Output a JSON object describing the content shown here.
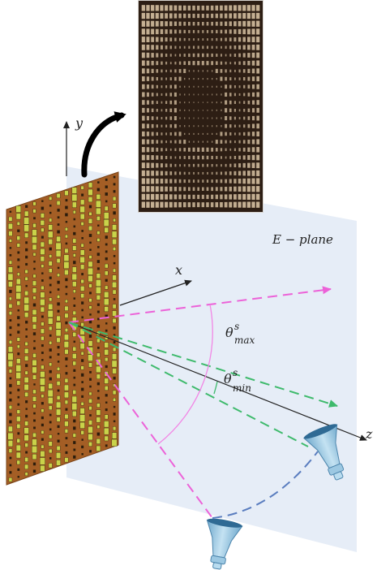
{
  "labels": {
    "y_axis": "y",
    "x_axis": "x",
    "z_axis": "z",
    "plane": "E − plane",
    "theta_max_symbol": "θ",
    "theta_max_super": "s",
    "theta_max_sub": "max",
    "theta_min_symbol": "θ",
    "theta_min_super": "s",
    "theta_min_sub": "min"
  },
  "colors": {
    "plane": "#e6edf7",
    "panel_base": "#a45e25",
    "panel_cells": "#c9d34a",
    "photo_bg": "#2d1e14",
    "photo_patch": "#cdb89a",
    "beam_max": "#ec62d8",
    "beam_min": "#3eba6c",
    "angle_arc": "#f286e5",
    "horn_path": "#5a7dbf",
    "horn": "#8fc1de",
    "axis": "#222222"
  },
  "icons": [
    "curved-arrow-icon",
    "horn-antenna-icon"
  ]
}
